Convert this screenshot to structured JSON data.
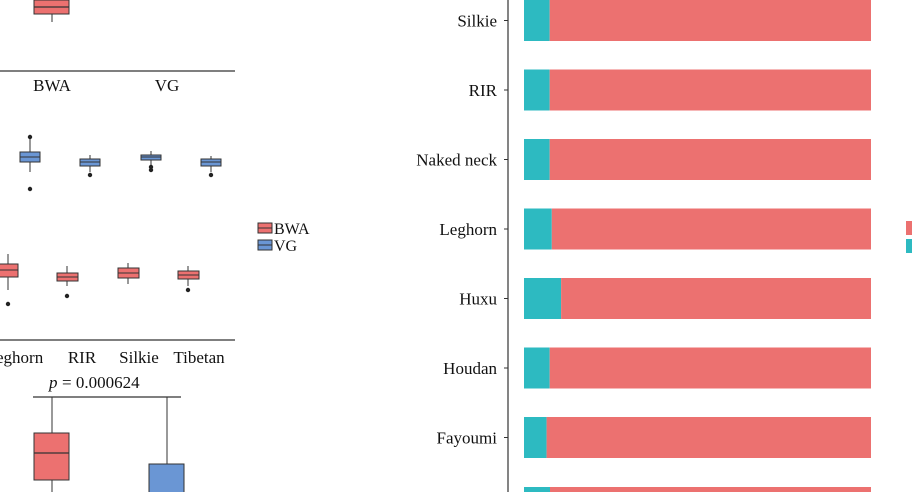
{
  "colors": {
    "bwa": "#ec7170",
    "vg": "#2dbac1",
    "vg_box": "#6a96d4",
    "axis": "#333333"
  },
  "chart_data": [
    {
      "type": "box",
      "panel": "top-left (cropped)",
      "categories": [
        "BWA",
        "VG"
      ],
      "series": [
        {
          "name": "BWA",
          "box": {
            "q1": null,
            "median": null,
            "q3": null
          }
        }
      ]
    },
    {
      "type": "box",
      "panel": "middle-left (cropped)",
      "categories": [
        "Leghorn",
        "RIR",
        "Silkie",
        "Tibetan"
      ],
      "tick_labels": [
        "eghorn",
        "RIR",
        "Silkie",
        "Tibetan"
      ],
      "legend": {
        "placement": "right",
        "entries": [
          "BWA",
          "VG"
        ]
      }
    },
    {
      "type": "box",
      "panel": "bottom-left (cropped)",
      "categories": [
        "BWA",
        "VG"
      ],
      "annotation": {
        "p_label": "p",
        "p_value": "= 0.000624"
      }
    },
    {
      "type": "bar",
      "orientation": "horizontal",
      "stacked": true,
      "normalized": true,
      "categories": [
        "Silkie",
        "RIR",
        "Naked neck",
        "Leghorn",
        "Huxu",
        "Houdan",
        "Fayoumi"
      ],
      "series": [
        {
          "values": [
            0.074,
            0.074,
            0.074,
            0.08,
            0.107,
            0.074,
            0.065
          ]
        },
        {
          "values": [
            0.926,
            0.926,
            0.926,
            0.92,
            0.893,
            0.926,
            0.935
          ]
        }
      ],
      "xlim": [
        0,
        1
      ]
    }
  ]
}
